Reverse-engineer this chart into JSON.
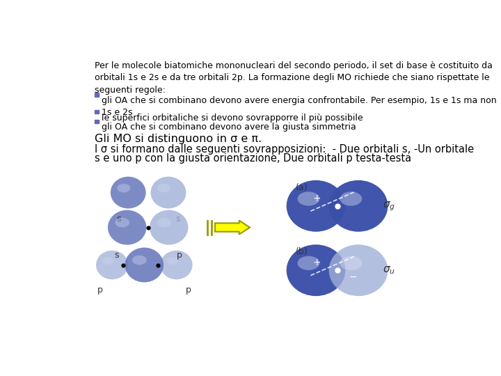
{
  "bg_color": "#ffffff",
  "text_color": "#000000",
  "bullet_color": "#6666bb",
  "title_text": "Per le molecole biatomiche mononucleari del secondo periodo, il set di base è costituito da\norbitali 1s e 2s e da tre orbitali 2p. La formazione degli MO richiede che siano rispettate le\nseguenti regole:",
  "bullet1": "gli OA che si combinano devono avere energia confrontabile. Per esempio, 1s e 1s ma non\n1s e 2s",
  "bullet2": "le superfici orbitaliche si devono sovrapporre il più possibile",
  "bullet3": "gli OA che si combinano devono avere la giusta simmetria",
  "line4": "Gli MO si distinguono in σ e π.",
  "line5a": "I σ si formano dalle seguenti sovrapposizioni:  - Due orbitali s, -Un orbitale",
  "line5b": "s e uno p con la giusta orientazione, Due orbitali p testa-testa",
  "orbital_light": "#a0afd8",
  "orbital_mid": "#6677bb",
  "orbital_dark": "#3a4fa8",
  "orbital_vdark": "#2a3a8a",
  "orbital_highlight": "#d0d8f0",
  "arrow_yellow": "#ffff00",
  "arrow_edge": "#999900",
  "label_color": "#333333",
  "fs_main": 9.0,
  "fs_line4": 11.5,
  "fs_line5": 10.5
}
